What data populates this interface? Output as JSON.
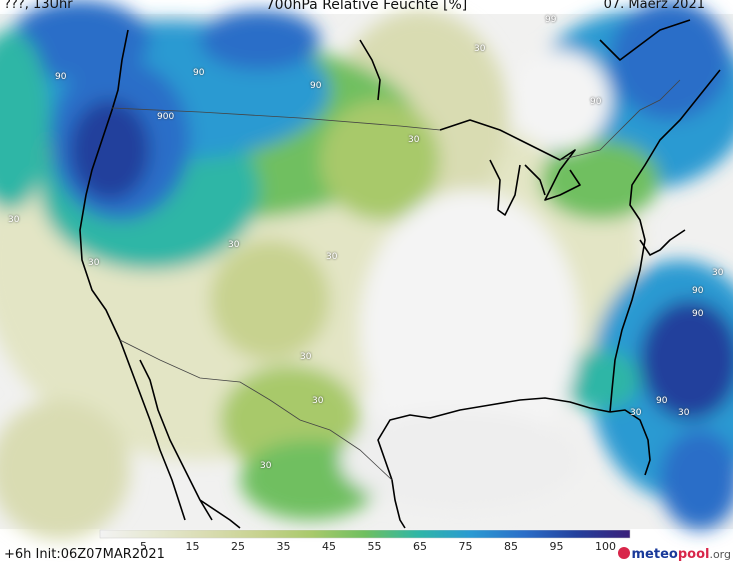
{
  "header": {
    "left": "???, 13Uhr",
    "title": "700hPa Relative Feuchte [%]",
    "date": "07. Maerz 2021"
  },
  "footer": {
    "run": "+6h  Init:06Z07MAR2021",
    "logo": {
      "brand_a": "meteo",
      "brand_b": "pool",
      "brand_c": ".org"
    }
  },
  "legend": {
    "ticks": [
      "5",
      "15",
      "25",
      "35",
      "45",
      "55",
      "65",
      "75",
      "85",
      "95",
      "100"
    ],
    "colors": [
      "#f3f3f3",
      "#e6e8d2",
      "#d9dcb2",
      "#c7d28f",
      "#a8c96b",
      "#6fbf60",
      "#2fb6a6",
      "#2a9ad2",
      "#2a6ec8",
      "#24409c",
      "#3a1f7a"
    ]
  },
  "map_labels": [
    {
      "text": "90"
    },
    {
      "text": "90"
    },
    {
      "text": "90"
    },
    {
      "text": "900"
    },
    {
      "text": "99"
    },
    {
      "text": "30"
    },
    {
      "text": "90"
    },
    {
      "text": "30"
    },
    {
      "text": "30"
    },
    {
      "text": "30"
    },
    {
      "text": "30"
    },
    {
      "text": "30"
    },
    {
      "text": "30"
    },
    {
      "text": "30"
    },
    {
      "text": "30"
    },
    {
      "text": "90"
    },
    {
      "text": "90"
    },
    {
      "text": "30"
    },
    {
      "text": "90"
    },
    {
      "text": "30"
    },
    {
      "text": "30"
    }
  ]
}
